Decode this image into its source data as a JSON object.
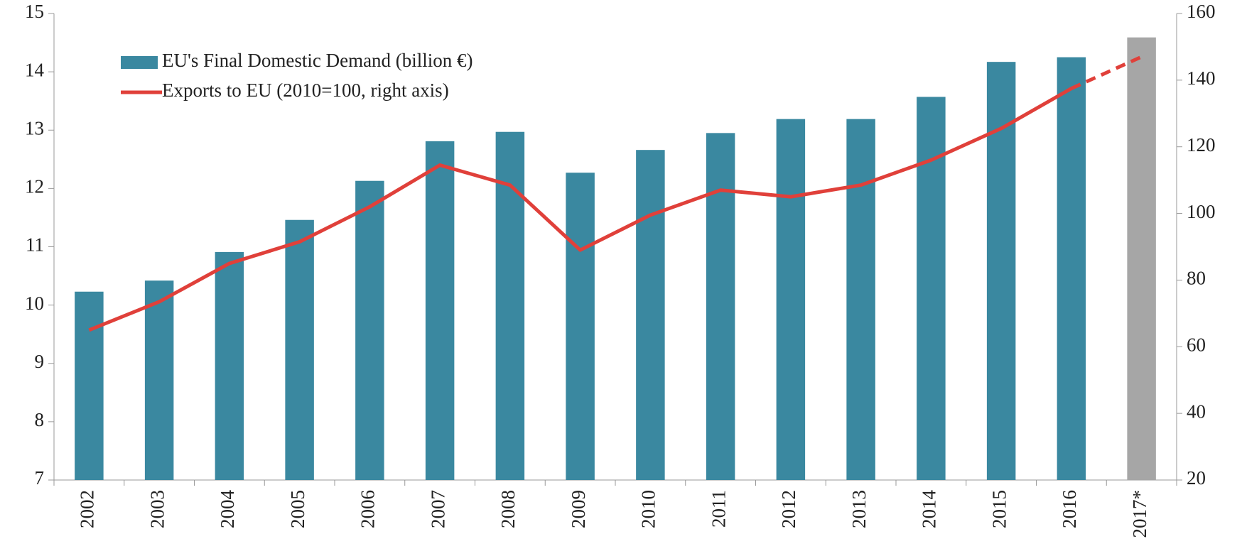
{
  "chart_data": {
    "type": "bar_line",
    "categories": [
      "2002",
      "2003",
      "2004",
      "2005",
      "2006",
      "2007",
      "2008",
      "2009",
      "2010",
      "2011",
      "2012",
      "2013",
      "2014",
      "2015",
      "2016",
      "2017*"
    ],
    "series": [
      {
        "name": "EU's Final Domestic Demand (billion €)",
        "type": "bar",
        "color": "#3a88a0",
        "colors": [
          "#3a88a0",
          "#3a88a0",
          "#3a88a0",
          "#3a88a0",
          "#3a88a0",
          "#3a88a0",
          "#3a88a0",
          "#3a88a0",
          "#3a88a0",
          "#3a88a0",
          "#3a88a0",
          "#3a88a0",
          "#3a88a0",
          "#3a88a0",
          "#3a88a0",
          "#a6a6a6"
        ],
        "values": [
          10.23,
          10.42,
          10.91,
          11.46,
          12.13,
          12.81,
          12.97,
          12.27,
          12.66,
          12.95,
          13.19,
          13.19,
          13.57,
          14.17,
          14.25,
          14.59
        ]
      },
      {
        "name": "Exports to EU (2010=100, right axis)",
        "type": "line",
        "axis": "y2",
        "color": "#e0403a",
        "line_styles": [
          "solid",
          "solid",
          "solid",
          "solid",
          "solid",
          "solid",
          "solid",
          "solid",
          "solid",
          "solid",
          "solid",
          "solid",
          "solid",
          "solid",
          "solid",
          "dashed"
        ],
        "values": [
          65,
          73.5,
          85,
          91.5,
          102,
          114.5,
          108.5,
          89,
          99.5,
          107,
          105,
          108.5,
          116,
          125.5,
          137.5,
          147
        ]
      }
    ],
    "ylim": [
      7,
      15
    ],
    "yticks": [
      7,
      8,
      9,
      10,
      11,
      12,
      13,
      14,
      15
    ],
    "y2lim": [
      20,
      160
    ],
    "y2ticks": [
      20,
      40,
      60,
      80,
      100,
      120,
      140,
      160
    ],
    "legend": "top-left",
    "grid": false
  }
}
